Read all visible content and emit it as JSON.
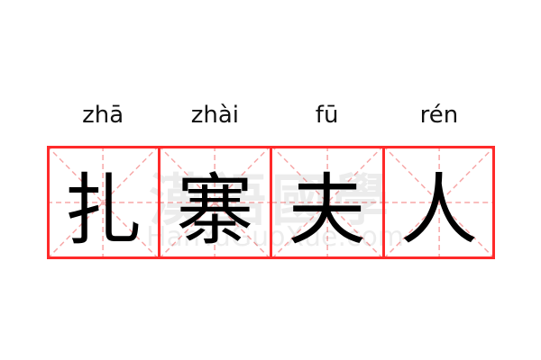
{
  "word": [
    {
      "pinyin": "zhā",
      "char": "扎"
    },
    {
      "pinyin": "zhài",
      "char": "寨"
    },
    {
      "pinyin": "fū",
      "char": "夫"
    },
    {
      "pinyin": "rén",
      "char": "人"
    }
  ],
  "watermark": {
    "cn": "漢語國學",
    "en": "HanYuGuoXue.com"
  },
  "colors": {
    "grid_border": "#ff2a2a",
    "grid_guides": "#f7a7a7"
  }
}
